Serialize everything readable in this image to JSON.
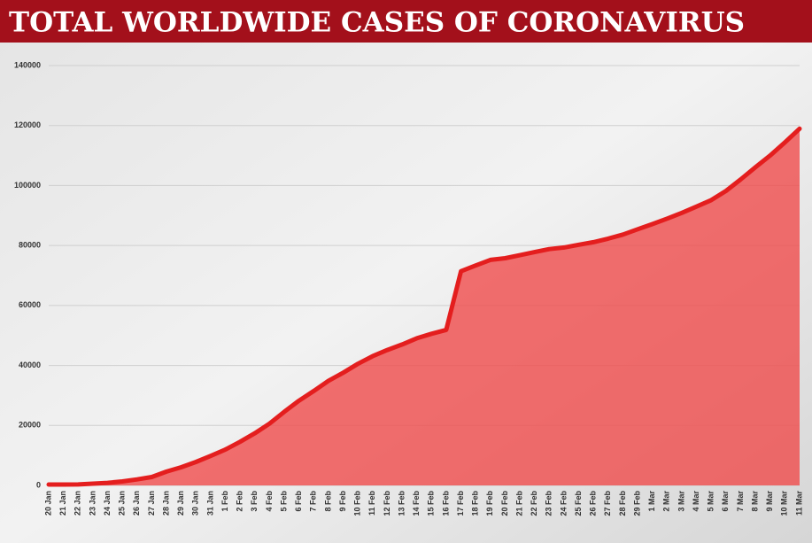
{
  "chart_data": {
    "type": "area",
    "title": "TOTAL WORLDWIDE CASES OF CORONAVIRUS",
    "categories": [
      "20 Jan",
      "21 Jan",
      "22 Jan",
      "23 Jan",
      "24 Jan",
      "25 Jan",
      "26 Jan",
      "27 Jan",
      "28 Jan",
      "29 Jan",
      "30 Jan",
      "31 Jan",
      "1 Feb",
      "2 Feb",
      "3 Feb",
      "4 Feb",
      "5 Feb",
      "6 Feb",
      "7 Feb",
      "8 Feb",
      "9 Feb",
      "10 Feb",
      "11 Feb",
      "12 Feb",
      "13 Feb",
      "14 Feb",
      "15 Feb",
      "16 Feb",
      "17 Feb",
      "18 Feb",
      "19 Feb",
      "20 Feb",
      "21 Feb",
      "22 Feb",
      "23 Feb",
      "24 Feb",
      "25 Feb",
      "26 Feb",
      "27 Feb",
      "28 Feb",
      "29 Feb",
      "1 Mar",
      "2 Mar",
      "3 Mar",
      "4 Mar",
      "5 Mar",
      "6 Mar",
      "7 Mar",
      "8 Mar",
      "9 Mar",
      "10 Mar",
      "11 Mar"
    ],
    "values": [
      282,
      282,
      314,
      581,
      846,
      1320,
      2014,
      2798,
      4593,
      6065,
      7818,
      9826,
      11953,
      14557,
      17391,
      20630,
      24554,
      28276,
      31481,
      34886,
      37558,
      40554,
      43103,
      45171,
      46997,
      49053,
      50580,
      51857,
      71429,
      73332,
      75204,
      75748,
      76769,
      77794,
      78811,
      79331,
      80239,
      81109,
      82294,
      83652,
      85403,
      87137,
      88948,
      90869,
      92977,
      95124,
      98192,
      102050,
      106099,
      109991,
      114381,
      118948
    ],
    "color": "#e41e1e",
    "fill": "#f04848",
    "ylim": [
      0,
      140000
    ],
    "yticks": [
      0,
      20000,
      40000,
      60000,
      80000,
      100000,
      120000,
      140000
    ],
    "grid": true
  }
}
